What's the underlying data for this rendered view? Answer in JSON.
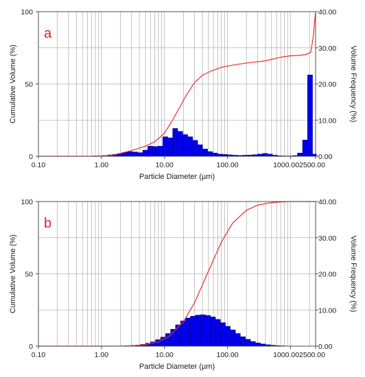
{
  "chart_data": [
    {
      "panel": "a",
      "type": "bar",
      "label": "a",
      "xlabel": "Particle Diameter (µm)",
      "ylabel_left": "Cumulative Volume (%)",
      "ylabel_right": "Volume Frequency (%)",
      "x_scale": "log",
      "xlim": [
        0.1,
        2500
      ],
      "ylim_left": [
        0,
        100
      ],
      "ylim_right": [
        0,
        40
      ],
      "x_tick_labels": [
        "0.10",
        "1.00",
        "10.00",
        "100.00",
        "1000.002500.00"
      ],
      "x_ticks": [
        0.1,
        1,
        10,
        100,
        1000,
        2500
      ],
      "y_left_tick_labels": [
        "0",
        "50",
        "100"
      ],
      "y_right_tick_labels": [
        "0.00",
        "10.00",
        "20.00",
        "30.00",
        "40.00"
      ],
      "grid": true,
      "series": [
        {
          "kind": "bar",
          "axis": "right",
          "color": "#0000ee",
          "x": [
            0.8,
            0.96,
            1.15,
            1.38,
            1.66,
            1.99,
            2.39,
            2.87,
            3.44,
            4.13,
            4.96,
            5.95,
            7.14,
            8.57,
            10.3,
            12.3,
            14.8,
            17.8,
            21.3,
            25.6,
            30.7,
            36.8,
            44.2,
            53.1,
            63.7,
            76.4,
            91.7,
            110,
            132,
            158,
            190,
            228,
            274,
            328,
            394,
            473,
            567,
            681,
            817,
            980,
            1180,
            1410,
            1700,
            2040,
            2360
          ],
          "y": [
            0.1,
            0.15,
            0.25,
            0.4,
            0.55,
            0.8,
            1.1,
            1.3,
            1.2,
            1.0,
            1.7,
            2.8,
            2.7,
            2.8,
            5.4,
            5.1,
            7.7,
            6.9,
            6.0,
            5.4,
            4.4,
            3.2,
            2.0,
            1.3,
            0.9,
            0.6,
            0.5,
            0.4,
            0.3,
            0.25,
            0.3,
            0.35,
            0.45,
            0.6,
            0.8,
            0.6,
            0.3,
            0.15,
            0.1,
            0.1,
            0.2,
            0.9,
            4.5,
            22.5,
            0.6
          ]
        },
        {
          "kind": "line",
          "axis": "left",
          "color": "#ee2a2a",
          "x": [
            0.1,
            0.5,
            0.8,
            1.0,
            1.5,
            2.0,
            3.0,
            5.0,
            7.0,
            10,
            13,
            17,
            22,
            30,
            40,
            55,
            80,
            120,
            200,
            400,
            700,
            1000,
            1400,
            1800,
            2100,
            2300,
            2500
          ],
          "y": [
            0,
            0,
            0,
            0.2,
            0.8,
            2,
            4,
            7,
            10,
            16,
            24,
            33,
            42,
            51,
            56,
            59,
            61.5,
            63,
            64.5,
            66,
            68.5,
            69.5,
            69.8,
            70.5,
            72,
            83,
            100
          ]
        }
      ]
    },
    {
      "panel": "b",
      "type": "bar",
      "label": "b",
      "xlabel": "Particle Diameter (µm)",
      "ylabel_left": "Cumulative Volume (%)",
      "ylabel_right": "Volume Frequency (%)",
      "x_scale": "log",
      "xlim": [
        0.1,
        2500
      ],
      "ylim_left": [
        0,
        100
      ],
      "ylim_right": [
        0,
        40
      ],
      "x_tick_labels": [
        "0.10",
        "1.00",
        "10.00",
        "100.00",
        "1000.002500.00"
      ],
      "x_ticks": [
        0.1,
        1,
        10,
        100,
        1000,
        2500
      ],
      "y_left_tick_labels": [
        "0",
        "50",
        "100"
      ],
      "y_right_tick_labels": [
        "0.00",
        "10.00",
        "20.00",
        "30.00",
        "40.00"
      ],
      "grid": true,
      "series": [
        {
          "kind": "bar",
          "axis": "right",
          "color": "#0000ee",
          "x": [
            2.2,
            2.65,
            3.2,
            3.85,
            4.6,
            5.5,
            6.6,
            7.9,
            9.5,
            11.4,
            13.7,
            16.4,
            19.7,
            23.6,
            28.3,
            34,
            40.8,
            49,
            58.8,
            70.5,
            84.6,
            101,
            122,
            146,
            176,
            211,
            253,
            304,
            365,
            438,
            525,
            630,
            756,
            907
          ],
          "y": [
            0.05,
            0.1,
            0.2,
            0.3,
            0.5,
            0.8,
            1.2,
            1.8,
            2.5,
            3.5,
            4.7,
            5.9,
            7.0,
            7.8,
            8.3,
            8.6,
            8.7,
            8.5,
            8.1,
            7.4,
            6.5,
            5.5,
            4.5,
            3.5,
            2.6,
            1.9,
            1.3,
            0.9,
            0.6,
            0.4,
            0.25,
            0.15,
            0.1,
            0.05
          ]
        },
        {
          "kind": "line",
          "axis": "left",
          "color": "#ee2a2a",
          "x": [
            0.1,
            1,
            2,
            3,
            5,
            8,
            12,
            20,
            30,
            50,
            80,
            120,
            200,
            300,
            500,
            800,
            1000,
            2500
          ],
          "y": [
            0,
            0,
            0.1,
            0.3,
            1,
            3,
            7,
            17,
            30,
            52,
            72,
            85,
            94,
            97.5,
            99.3,
            99.8,
            100,
            100
          ]
        }
      ]
    }
  ]
}
